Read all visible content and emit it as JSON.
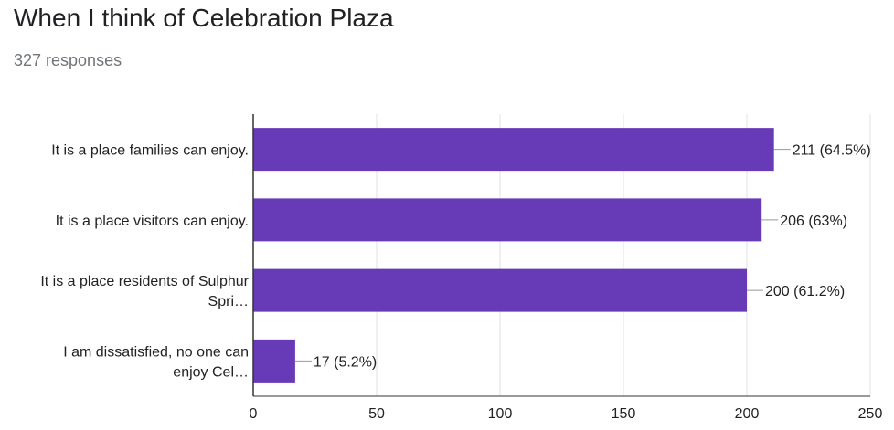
{
  "header": {
    "title": "When I think of Celebration Plaza",
    "responses": "327 responses"
  },
  "colors": {
    "bar": "#673ab7",
    "grid": "#e0e0e0",
    "axis": "#333333",
    "leader": "#999999"
  },
  "chart_data": {
    "type": "bar",
    "orientation": "horizontal",
    "categories": [
      [
        "It is a place families can enjoy."
      ],
      [
        "It is a place visitors can enjoy."
      ],
      [
        "It is a place residents of Sulphur",
        "Spri…"
      ],
      [
        "I am dissatisfied, no one can",
        "enjoy Cel…"
      ]
    ],
    "values": [
      211,
      206,
      200,
      17
    ],
    "data_labels": [
      "211 (64.5%)",
      "206 (63%)",
      "200 (61.2%)",
      "17 (5.2%)"
    ],
    "xlim": [
      0,
      250
    ],
    "xticks": [
      0,
      50,
      100,
      150,
      200,
      250
    ],
    "grid": true
  }
}
